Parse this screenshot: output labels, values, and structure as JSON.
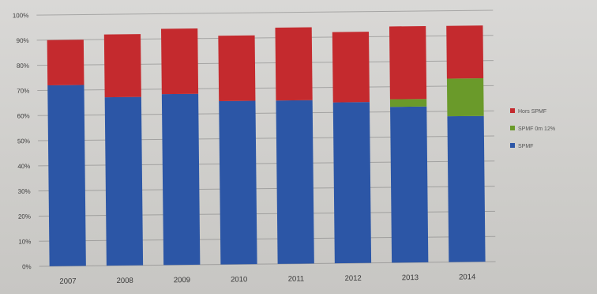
{
  "chart_data": {
    "type": "bar",
    "stacked": true,
    "categories": [
      "2007",
      "2008",
      "2009",
      "2010",
      "2011",
      "2012",
      "2013",
      "2014"
    ],
    "series": [
      {
        "name": "SPMF",
        "color": "#2c56a6",
        "values": [
          72,
          67,
          68,
          65,
          65,
          64,
          62,
          58
        ]
      },
      {
        "name": "SPMF 0m 12%",
        "color": "#6a9a2a",
        "values": [
          0,
          0,
          0,
          0,
          0,
          0,
          3,
          15
        ]
      },
      {
        "name": "Hors SPMF",
        "color": "#c42a2e",
        "values": [
          18,
          25,
          26,
          26,
          29,
          28,
          29,
          21
        ]
      }
    ],
    "legend_order": [
      "Hors SPMF",
      "SPMF 0m 12%",
      "SPMF"
    ],
    "legend_position": "right",
    "y_ticks": [
      "0%",
      "10%",
      "20%",
      "30%",
      "40%",
      "50%",
      "60%",
      "70%",
      "80%",
      "90%",
      "100%"
    ],
    "ylim": [
      0,
      100
    ],
    "grid": true
  }
}
